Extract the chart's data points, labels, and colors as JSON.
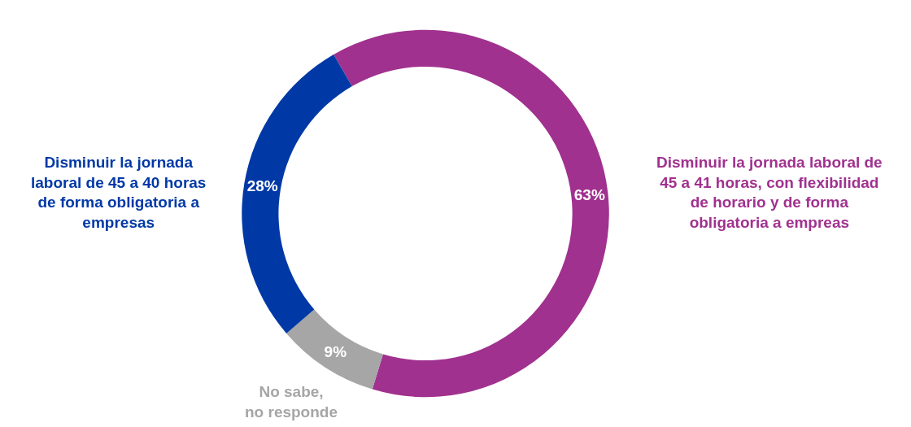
{
  "chart_data": {
    "type": "donut",
    "categories": [
      "Disminuir la jornada laboral de\n45 a 41 horas, con flexibilidad\nde horario y de forma\nobligatoria a empreas",
      "No sabe,\nno responde",
      "Disminuir la jornada\nlaboral de 45 a 40 horas\nde forma obligatoria a\nempresas"
    ],
    "values": [
      63,
      9,
      28
    ],
    "colors": [
      "#a0318f",
      "#a6a6a6",
      "#0039a6"
    ],
    "value_labels": [
      "63%",
      "9%",
      "28%"
    ],
    "legend": false
  }
}
